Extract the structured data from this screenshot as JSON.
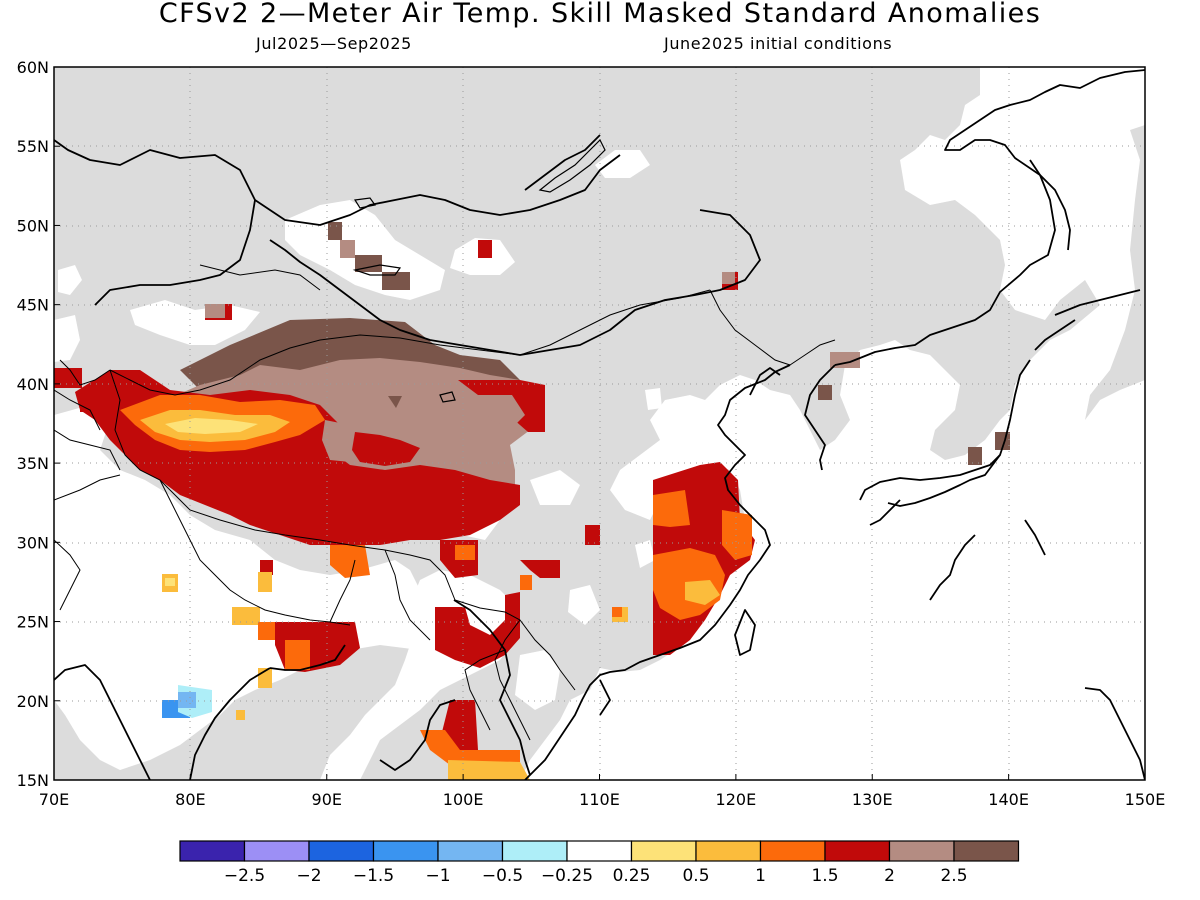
{
  "title": "CFSv2 2—Meter Air Temp. Skill Masked Standard Anomalies",
  "subtitle_left": "Jul2025—Sep2025",
  "subtitle_right": "June2025 initial conditions",
  "map": {
    "lon_range": [
      70,
      150
    ],
    "lat_range": [
      15,
      60
    ],
    "lon_ticks": [
      "70E",
      "80E",
      "90E",
      "100E",
      "110E",
      "120E",
      "130E",
      "140E",
      "150E"
    ],
    "lat_ticks": [
      "15N",
      "20N",
      "25N",
      "30N",
      "35N",
      "40N",
      "45N",
      "50N",
      "55N",
      "60N"
    ],
    "grid": true,
    "mask_color": "#dcdcdc",
    "land_color": "#ffffff"
  },
  "colorbar": {
    "colors": [
      "#3a23ad",
      "#9c8ff5",
      "#1c64e0",
      "#3a94f0",
      "#74b6f2",
      "#aeeef8",
      "#ffffff",
      "#fde278",
      "#fbbc3c",
      "#fc6a0b",
      "#c10a0a",
      "#b48c82",
      "#7a554a"
    ],
    "labels": [
      "−2.5",
      "−2",
      "−1.5",
      "−1",
      "−0.5",
      "−0.25",
      "0.25",
      "0.5",
      "1",
      "1.5",
      "2",
      "2.5"
    ]
  }
}
